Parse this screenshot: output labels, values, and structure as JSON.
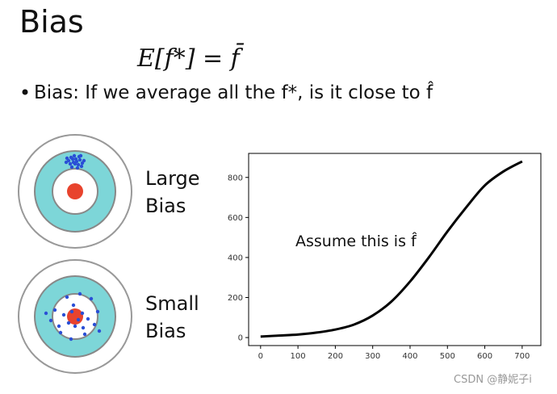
{
  "title": "Bias",
  "formula": "E[f*] = f̄",
  "bullet": "Bias: If we average all the f*, is it close to f̂",
  "targets": [
    {
      "label_lines": [
        "Large",
        "Bias"
      ]
    },
    {
      "label_lines": [
        "Small",
        "Bias"
      ]
    }
  ],
  "chart_data": {
    "type": "line",
    "annotation": "Assume this is f̂",
    "x": [
      0,
      50,
      100,
      150,
      200,
      250,
      300,
      350,
      400,
      450,
      500,
      550,
      600,
      650,
      700
    ],
    "values": [
      5,
      10,
      15,
      25,
      40,
      65,
      110,
      180,
      280,
      400,
      530,
      650,
      760,
      830,
      880
    ],
    "color": "#000000",
    "xlim": [
      -32,
      750
    ],
    "ylim": [
      -40,
      920
    ],
    "xticks": [
      0,
      100,
      200,
      300,
      400,
      500,
      600,
      700
    ],
    "yticks": [
      0,
      200,
      400,
      600,
      800
    ]
  },
  "watermark": "CSDN @静妮子i"
}
